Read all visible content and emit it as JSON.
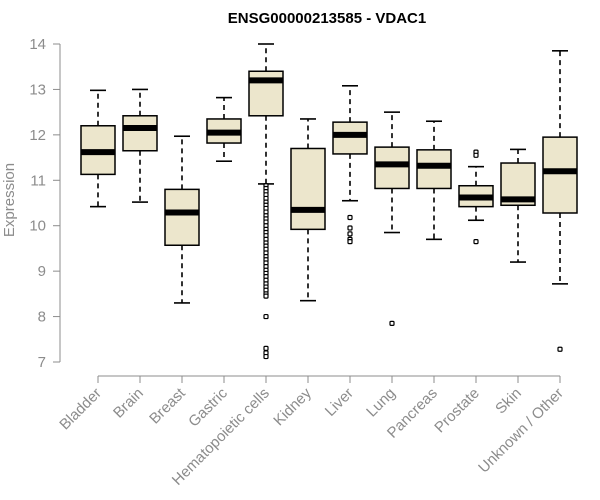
{
  "colors": {
    "box_fill": "#ece6cc",
    "axis": "#8c8c8c",
    "ink": "#000000"
  },
  "chart_data": {
    "type": "boxplot",
    "title": "ENSG00000213585 - VDAC1",
    "xlabel": "",
    "ylabel": "Expression",
    "ylim": [
      7,
      14
    ],
    "yticks": [
      7,
      8,
      9,
      10,
      11,
      12,
      13,
      14
    ],
    "grid": false,
    "categories": [
      "Bladder",
      "Brain",
      "Breast",
      "Gastric",
      "Hematopoietic cells",
      "Kidney",
      "Liver",
      "Lung",
      "Pancreas",
      "Prostate",
      "Skin",
      "Unknown / Other"
    ],
    "boxes": [
      {
        "name": "Bladder",
        "whisker_low": 10.42,
        "q1": 11.13,
        "median": 11.62,
        "q3": 12.2,
        "whisker_high": 12.98,
        "outliers": []
      },
      {
        "name": "Brain",
        "whisker_low": 10.52,
        "q1": 11.65,
        "median": 12.15,
        "q3": 12.42,
        "whisker_high": 13.0,
        "outliers": []
      },
      {
        "name": "Breast",
        "whisker_low": 8.3,
        "q1": 9.57,
        "median": 10.29,
        "q3": 10.8,
        "whisker_high": 11.97,
        "outliers": []
      },
      {
        "name": "Gastric",
        "whisker_low": 11.42,
        "q1": 11.82,
        "median": 12.05,
        "q3": 12.35,
        "whisker_high": 12.82,
        "outliers": []
      },
      {
        "name": "Hematopoietic cells",
        "whisker_low": 10.92,
        "q1": 12.42,
        "median": 13.2,
        "q3": 13.4,
        "whisker_high": 14.0,
        "outliers": [
          10.88,
          10.82,
          10.75,
          10.68,
          10.6,
          10.52,
          10.45,
          10.38,
          10.3,
          10.22,
          10.15,
          10.08,
          10.0,
          9.92,
          9.85,
          9.78,
          9.7,
          9.62,
          9.55,
          9.48,
          9.4,
          9.32,
          9.25,
          9.18,
          9.1,
          9.02,
          8.95,
          8.88,
          8.8,
          8.72,
          8.65,
          8.58,
          8.5,
          8.45,
          8.0,
          7.3,
          7.2,
          7.12
        ]
      },
      {
        "name": "Kidney",
        "whisker_low": 8.35,
        "q1": 9.92,
        "median": 10.35,
        "q3": 11.7,
        "whisker_high": 12.35,
        "outliers": []
      },
      {
        "name": "Liver",
        "whisker_low": 10.55,
        "q1": 11.58,
        "median": 12.0,
        "q3": 12.28,
        "whisker_high": 13.08,
        "outliers": [
          10.18,
          9.95,
          9.82,
          9.7,
          9.65
        ]
      },
      {
        "name": "Lung",
        "whisker_low": 9.85,
        "q1": 10.82,
        "median": 11.35,
        "q3": 11.73,
        "whisker_high": 12.5,
        "outliers": [
          7.85
        ]
      },
      {
        "name": "Pancreas",
        "whisker_low": 9.7,
        "q1": 10.82,
        "median": 11.32,
        "q3": 11.67,
        "whisker_high": 12.3,
        "outliers": []
      },
      {
        "name": "Prostate",
        "whisker_low": 10.12,
        "q1": 10.42,
        "median": 10.62,
        "q3": 10.88,
        "whisker_high": 11.3,
        "outliers": [
          11.62,
          11.55,
          9.65
        ]
      },
      {
        "name": "Skin",
        "whisker_low": 9.2,
        "q1": 10.45,
        "median": 10.58,
        "q3": 11.38,
        "whisker_high": 11.68,
        "outliers": []
      },
      {
        "name": "Unknown / Other",
        "whisker_low": 8.72,
        "q1": 10.28,
        "median": 11.2,
        "q3": 11.95,
        "whisker_high": 13.85,
        "outliers": [
          7.28
        ]
      }
    ]
  }
}
